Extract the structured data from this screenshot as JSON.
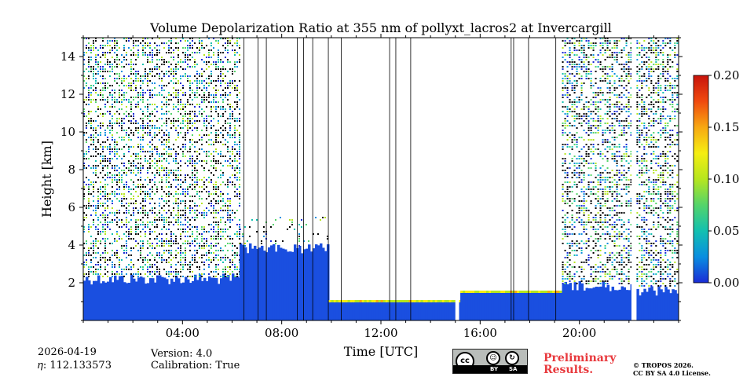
{
  "chart_data": {
    "type": "heatmap",
    "title": "Volume Depolarization Ratio at 355 nm of pollyxt_lacros2 at Invercargill",
    "xlabel": "Time [UTC]",
    "ylabel": "Height [km]",
    "xlim": [
      0,
      24
    ],
    "ylim": [
      0,
      15
    ],
    "x_ticks": [
      4,
      8,
      12,
      16,
      20
    ],
    "x_tick_labels": [
      "04:00",
      "08:00",
      "12:00",
      "16:00",
      "20:00"
    ],
    "y_ticks": [
      2,
      4,
      6,
      8,
      10,
      12,
      14
    ],
    "y_tick_labels": [
      "2",
      "4",
      "6",
      "8",
      "10",
      "12",
      "14"
    ],
    "colorbar": {
      "min": 0.0,
      "max": 0.2,
      "ticks": [
        0.0,
        0.05,
        0.1,
        0.15,
        0.2
      ],
      "tick_labels": [
        "0.00",
        "0.05",
        "0.10",
        "0.15",
        "0.20"
      ],
      "colormap": [
        "#1a2bd6",
        "#0a8ee0",
        "#12c0b0",
        "#54d46a",
        "#b6e61e",
        "#f5ee12",
        "#f7a812",
        "#f04a0f",
        "#c8140c"
      ]
    },
    "signal_segments": [
      {
        "start_h": 0.0,
        "end_h": 6.3,
        "noise_top_km": 15.0,
        "layer_top_km": 2.2,
        "regime": "noisy"
      },
      {
        "start_h": 6.3,
        "end_h": 9.9,
        "noise_top_km": 5.5,
        "layer_top_km": 3.8,
        "regime": "plumes"
      },
      {
        "start_h": 9.9,
        "end_h": 15.2,
        "noise_top_km": 0.0,
        "layer_top_km": 1.0,
        "regime": "cloud"
      },
      {
        "start_h": 15.2,
        "end_h": 19.3,
        "noise_top_km": 0.0,
        "layer_top_km": 1.5,
        "regime": "cloud"
      },
      {
        "start_h": 19.3,
        "end_h": 22.1,
        "noise_top_km": 15.0,
        "layer_top_km": 1.8,
        "regime": "noisy"
      },
      {
        "start_h": 22.3,
        "end_h": 24.0,
        "noise_top_km": 15.0,
        "layer_top_km": 1.6,
        "regime": "noisy"
      }
    ],
    "data_gaps_h": [
      [
        15.0,
        15.15
      ],
      [
        22.1,
        22.3
      ]
    ],
    "vertical_lines_h": [
      6.48,
      7.05,
      7.38,
      8.63,
      8.88,
      9.25,
      9.88,
      10.4,
      12.35,
      12.6,
      13.2,
      17.25,
      17.35,
      17.95,
      19.05
    ]
  },
  "footer": {
    "date": "2026-04-19",
    "eta": "𝜂: 112.133573",
    "version": "Version: 4.0",
    "calibration": "Calibration: True",
    "preliminary_line1": "Preliminary",
    "preliminary_line2": "Results.",
    "copyright_line1": "© TROPOS 2026.",
    "copyright_line2": "CC BY SA 4.0 License."
  },
  "license_badge": {
    "cc": "cc",
    "by": "BY",
    "sa": "SA"
  }
}
